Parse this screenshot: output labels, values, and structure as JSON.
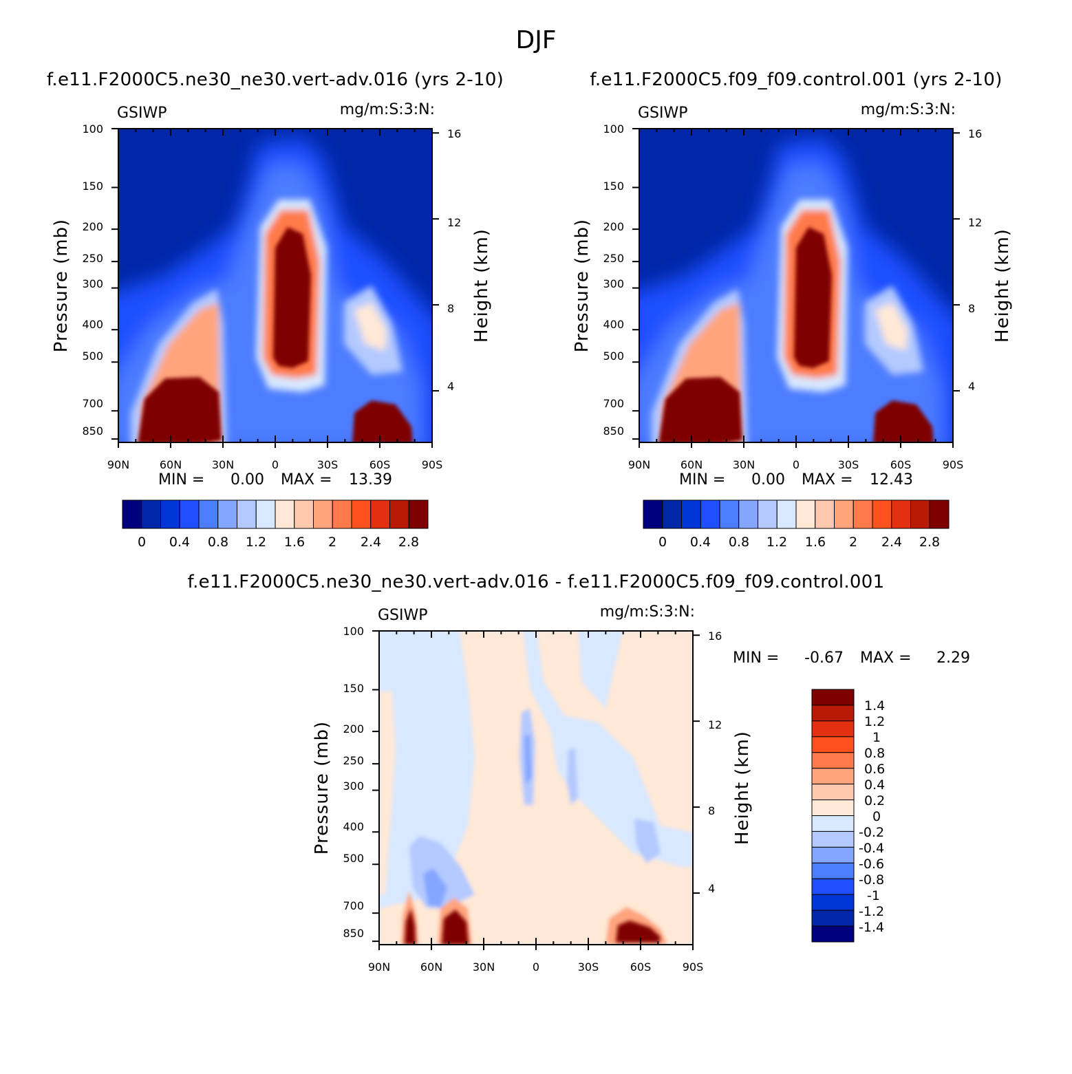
{
  "figure": {
    "suptitle": "DJF"
  },
  "colors": {
    "abs_levels": [
      "#00007f",
      "#0027a8",
      "#0035d6",
      "#1f4fff",
      "#4d7dff",
      "#84a6ff",
      "#b3c9ff",
      "#d8e8ff",
      "#ffe8d6",
      "#ffc9b0",
      "#ffa47d",
      "#ff7a4a",
      "#ff5020",
      "#e23010",
      "#b81a06",
      "#7f0000"
    ],
    "diff_levels": [
      "#00007f",
      "#0027a8",
      "#0035d6",
      "#1f4fff",
      "#4d7dff",
      "#84a6ff",
      "#b3c9ff",
      "#d8e8ff",
      "#ffe8d6",
      "#ffc9b0",
      "#ffa47d",
      "#ff7a4a",
      "#ff5020",
      "#e23010",
      "#b81a06",
      "#7f0000"
    ]
  },
  "chart_data": [
    {
      "type": "heatmap",
      "title": "f.e11.F2000C5.ne30_ne30.vert-adv.016 (yrs 2-10)",
      "variable": "GSIWP",
      "units": "mg/m:S:3:N:",
      "xlabel": "",
      "ylabel": "Pressure (mb)",
      "y2label": "Height (km)",
      "x_ticks": [
        "90N",
        "60N",
        "30N",
        "0",
        "30S",
        "60S",
        "90S"
      ],
      "y_ticks": [
        "100",
        "150",
        "200",
        "250",
        "300",
        "400",
        "500",
        "700",
        "850"
      ],
      "y2_ticks": [
        "16",
        "12",
        "8",
        "4"
      ],
      "min_label": "MIN =",
      "min_value": "0.00",
      "max_label": "MAX =",
      "max_value": "13.39",
      "colorbar_labels": [
        "0",
        "0.4",
        "0.8",
        "1.2",
        "1.6",
        "2",
        "2.4",
        "2.8"
      ],
      "features": [
        {
          "lat": 45,
          "p": 800,
          "value": 6.0
        },
        {
          "lat": 65,
          "p": 820,
          "value": 5.0
        },
        {
          "lat": 50,
          "p": 420,
          "value": 2.1
        },
        {
          "lat": 40,
          "p": 520,
          "value": 1.8
        },
        {
          "lat": -10,
          "p": 300,
          "value": 6.0
        },
        {
          "lat": -8,
          "p": 480,
          "value": 5.0
        },
        {
          "lat": -55,
          "p": 800,
          "value": 6.0
        },
        {
          "lat": -52,
          "p": 400,
          "value": 1.5
        }
      ]
    },
    {
      "type": "heatmap",
      "title": "f.e11.F2000C5.f09_f09.control.001 (yrs 2-10)",
      "variable": "GSIWP",
      "units": "mg/m:S:3:N:",
      "xlabel": "",
      "ylabel": "Pressure (mb)",
      "y2label": "Height (km)",
      "x_ticks": [
        "90N",
        "60N",
        "30N",
        "0",
        "30S",
        "60S",
        "90S"
      ],
      "y_ticks": [
        "100",
        "150",
        "200",
        "250",
        "300",
        "400",
        "500",
        "700",
        "850"
      ],
      "y2_ticks": [
        "16",
        "12",
        "8",
        "4"
      ],
      "min_label": "MIN =",
      "min_value": "0.00",
      "max_label": "MAX =",
      "max_value": "12.43",
      "colorbar_labels": [
        "0",
        "0.4",
        "0.8",
        "1.2",
        "1.6",
        "2",
        "2.4",
        "2.8"
      ],
      "features": [
        {
          "lat": 45,
          "p": 800,
          "value": 6.0
        },
        {
          "lat": 65,
          "p": 820,
          "value": 5.0
        },
        {
          "lat": 50,
          "p": 420,
          "value": 2.0
        },
        {
          "lat": -10,
          "p": 300,
          "value": 6.0
        },
        {
          "lat": -8,
          "p": 480,
          "value": 5.0
        },
        {
          "lat": -55,
          "p": 800,
          "value": 6.0
        },
        {
          "lat": -52,
          "p": 400,
          "value": 1.5
        }
      ]
    },
    {
      "type": "heatmap",
      "title": "f.e11.F2000C5.ne30_ne30.vert-adv.016 - f.e11.F2000C5.f09_f09.control.001",
      "variable": "GSIWP",
      "units": "mg/m:S:3:N:",
      "xlabel": "",
      "ylabel": "Pressure (mb)",
      "y2label": "Height (km)",
      "x_ticks": [
        "90N",
        "60N",
        "30N",
        "0",
        "30S",
        "60S",
        "90S"
      ],
      "y_ticks": [
        "100",
        "150",
        "200",
        "250",
        "300",
        "400",
        "500",
        "700",
        "850"
      ],
      "y2_ticks": [
        "16",
        "12",
        "8",
        "4"
      ],
      "min_label": "MIN =",
      "min_value": "-0.67",
      "max_label": "MAX =",
      "max_value": "2.29",
      "colorbar_labels": [
        "1.4",
        "1.2",
        "1",
        "0.8",
        "0.6",
        "0.4",
        "0.2",
        "0",
        "-0.2",
        "-0.4",
        "-0.6",
        "-0.8",
        "-1",
        "-1.2",
        "-1.4"
      ],
      "features": [
        {
          "lat": 72,
          "p": 830,
          "value": 1.6
        },
        {
          "lat": 48,
          "p": 830,
          "value": 1.6
        },
        {
          "lat": -60,
          "p": 840,
          "value": 1.6
        },
        {
          "lat": 60,
          "p": 600,
          "value": -0.4
        },
        {
          "lat": 5,
          "p": 260,
          "value": -0.4
        },
        {
          "lat": -20,
          "p": 300,
          "value": -0.3
        }
      ]
    }
  ]
}
